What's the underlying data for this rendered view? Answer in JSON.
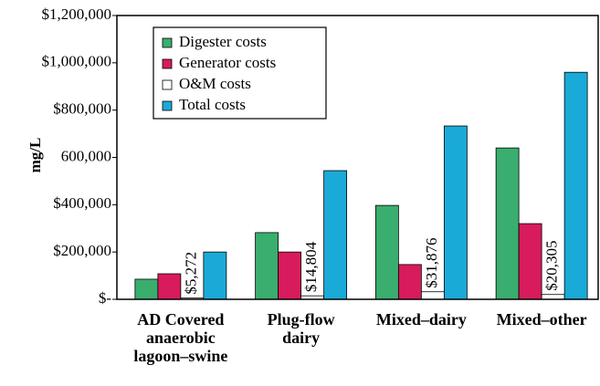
{
  "chart_data": {
    "type": "bar",
    "y_label": "mg/L",
    "categories": [
      "AD Covered anaerobic lagoon–swine",
      "Plug-flow dairy",
      "Mixed–dairy",
      "Mixed–other"
    ],
    "series": [
      {
        "name": "Digester costs",
        "color": "#3aae6e",
        "values": [
          85000,
          282000,
          397000,
          640000
        ]
      },
      {
        "name": "Generator costs",
        "color": "#d81b5c",
        "values": [
          108000,
          200000,
          147000,
          320000
        ]
      },
      {
        "name": "O&M costs",
        "color": "#ffffff",
        "values": [
          5272,
          14804,
          31876,
          20305
        ],
        "value_labels": [
          "$5,272",
          "$14,804",
          "$31,876",
          "$20,305"
        ]
      },
      {
        "name": "Total costs",
        "color": "#1aaad8",
        "values": [
          200000,
          544000,
          733000,
          960000
        ]
      }
    ],
    "ylim": [
      0,
      1200000
    ],
    "yticks": [
      {
        "value": 0,
        "label": "$-"
      },
      {
        "value": 200000,
        "label": "$200,000"
      },
      {
        "value": 400000,
        "label": "$400,000"
      },
      {
        "value": 600000,
        "label": "600,000"
      },
      {
        "value": 800000,
        "label": "$800,000"
      },
      {
        "value": 1000000,
        "label": "$1,000,000"
      },
      {
        "value": 1200000,
        "label": "$1,200,000"
      }
    ],
    "legend": "upper-left"
  }
}
